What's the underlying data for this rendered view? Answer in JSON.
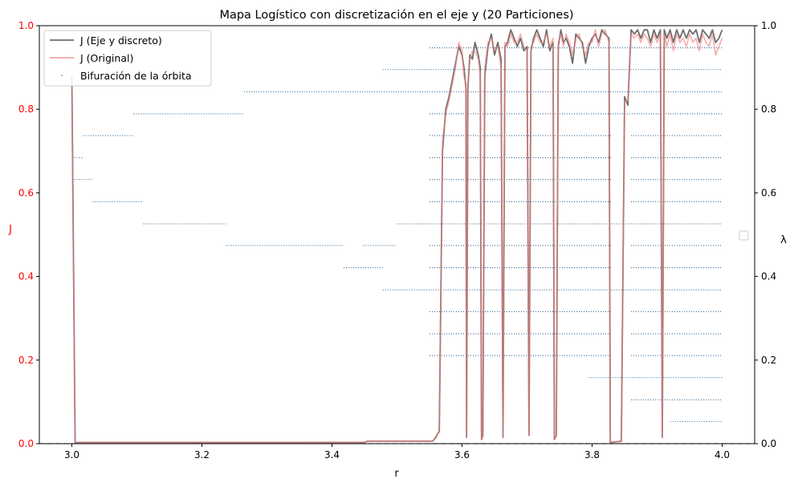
{
  "chart_data": {
    "type": "line",
    "title": "Mapa Logístico con discretización en el eje y (20 Particiones)",
    "xlabel": "r",
    "ylabel_left": "J",
    "ylabel_right": "λ",
    "xlim": [
      2.95,
      4.05
    ],
    "ylim_left": [
      0,
      1
    ],
    "ylim_right": [
      0,
      1
    ],
    "x_ticks": [
      3.0,
      3.2,
      3.4,
      3.6,
      3.8,
      4.0
    ],
    "x_tick_labels": [
      "3.0",
      "3.2",
      "3.4",
      "3.6",
      "3.8",
      "4.0"
    ],
    "y_left_ticks": [
      0.0,
      0.2,
      0.4,
      0.6,
      0.8,
      1.0
    ],
    "y_left_tick_labels": [
      "0.0",
      "0.2",
      "0.4",
      "0.6",
      "0.8",
      "1.0"
    ],
    "y_right_ticks": [
      0.0,
      0.2,
      0.4,
      0.6,
      0.8,
      1.0
    ],
    "y_right_tick_labels": [
      "0.0",
      "0.2",
      "0.4",
      "0.6",
      "0.8",
      "1.0"
    ],
    "grid": false,
    "legend_placement": "top-left",
    "colors": {
      "discrete": "#6e6e6e",
      "original": "#f08080",
      "bifurcation": "#1f5a8a",
      "left_axis_text": "#ff0000",
      "baseline": "#333333"
    },
    "series": [
      {
        "name": "J (Eje y discreto)",
        "style": "line",
        "points": [
          [
            3.0,
            0.88
          ],
          [
            3.005,
            0.003
          ],
          [
            3.45,
            0.003
          ],
          [
            3.455,
            0.006
          ],
          [
            3.555,
            0.006
          ],
          [
            3.56,
            0.016
          ],
          [
            3.565,
            0.03
          ],
          [
            3.57,
            0.7
          ],
          [
            3.575,
            0.8
          ],
          [
            3.58,
            0.83
          ],
          [
            3.59,
            0.91
          ],
          [
            3.595,
            0.95
          ],
          [
            3.6,
            0.93
          ],
          [
            3.603,
            0.9
          ],
          [
            3.606,
            0.85
          ],
          [
            3.607,
            0.015
          ],
          [
            3.609,
            0.85
          ],
          [
            3.612,
            0.93
          ],
          [
            3.616,
            0.92
          ],
          [
            3.62,
            0.96
          ],
          [
            3.625,
            0.93
          ],
          [
            3.628,
            0.9
          ],
          [
            3.63,
            0.01
          ],
          [
            3.632,
            0.02
          ],
          [
            3.635,
            0.88
          ],
          [
            3.64,
            0.95
          ],
          [
            3.645,
            0.98
          ],
          [
            3.65,
            0.93
          ],
          [
            3.655,
            0.96
          ],
          [
            3.66,
            0.92
          ],
          [
            3.663,
            0.015
          ],
          [
            3.666,
            0.95
          ],
          [
            3.67,
            0.96
          ],
          [
            3.675,
            0.99
          ],
          [
            3.68,
            0.97
          ],
          [
            3.685,
            0.95
          ],
          [
            3.69,
            0.97
          ],
          [
            3.695,
            0.94
          ],
          [
            3.7,
            0.95
          ],
          [
            3.703,
            0.02
          ],
          [
            3.706,
            0.94
          ],
          [
            3.71,
            0.97
          ],
          [
            3.715,
            0.99
          ],
          [
            3.72,
            0.97
          ],
          [
            3.725,
            0.95
          ],
          [
            3.73,
            0.99
          ],
          [
            3.735,
            0.94
          ],
          [
            3.74,
            0.96
          ],
          [
            3.742,
            0.01
          ],
          [
            3.745,
            0.02
          ],
          [
            3.748,
            0.95
          ],
          [
            3.752,
            0.99
          ],
          [
            3.756,
            0.96
          ],
          [
            3.76,
            0.97
          ],
          [
            3.765,
            0.95
          ],
          [
            3.77,
            0.91
          ],
          [
            3.775,
            0.98
          ],
          [
            3.78,
            0.97
          ],
          [
            3.785,
            0.96
          ],
          [
            3.79,
            0.91
          ],
          [
            3.795,
            0.95
          ],
          [
            3.8,
            0.97
          ],
          [
            3.805,
            0.98
          ],
          [
            3.81,
            0.96
          ],
          [
            3.815,
            0.99
          ],
          [
            3.82,
            0.98
          ],
          [
            3.826,
            0.97
          ],
          [
            3.828,
            0.003
          ],
          [
            3.83,
            0.003
          ],
          [
            3.845,
            0.006
          ],
          [
            3.85,
            0.83
          ],
          [
            3.855,
            0.81
          ],
          [
            3.86,
            0.99
          ],
          [
            3.865,
            0.98
          ],
          [
            3.87,
            0.99
          ],
          [
            3.875,
            0.97
          ],
          [
            3.88,
            0.99
          ],
          [
            3.885,
            0.99
          ],
          [
            3.89,
            0.96
          ],
          [
            3.895,
            0.99
          ],
          [
            3.9,
            0.97
          ],
          [
            3.905,
            0.99
          ],
          [
            3.908,
            0.015
          ],
          [
            3.911,
            0.99
          ],
          [
            3.915,
            0.97
          ],
          [
            3.92,
            0.99
          ],
          [
            3.925,
            0.96
          ],
          [
            3.93,
            0.99
          ],
          [
            3.935,
            0.97
          ],
          [
            3.94,
            0.99
          ],
          [
            3.945,
            0.97
          ],
          [
            3.95,
            0.99
          ],
          [
            3.955,
            0.98
          ],
          [
            3.96,
            0.99
          ],
          [
            3.965,
            0.96
          ],
          [
            3.97,
            0.99
          ],
          [
            3.975,
            0.98
          ],
          [
            3.98,
            0.97
          ],
          [
            3.985,
            0.99
          ],
          [
            3.99,
            0.96
          ],
          [
            3.995,
            0.97
          ],
          [
            4.0,
            0.99
          ]
        ]
      },
      {
        "name": "J (Original)",
        "style": "line",
        "points": [
          [
            3.0,
            0.88
          ],
          [
            3.005,
            0.003
          ],
          [
            3.45,
            0.003
          ],
          [
            3.455,
            0.006
          ],
          [
            3.555,
            0.006
          ],
          [
            3.56,
            0.018
          ],
          [
            3.565,
            0.028
          ],
          [
            3.57,
            0.72
          ],
          [
            3.575,
            0.79
          ],
          [
            3.58,
            0.82
          ],
          [
            3.59,
            0.9
          ],
          [
            3.595,
            0.96
          ],
          [
            3.6,
            0.94
          ],
          [
            3.603,
            0.88
          ],
          [
            3.606,
            0.86
          ],
          [
            3.607,
            0.015
          ],
          [
            3.609,
            0.86
          ],
          [
            3.612,
            0.92
          ],
          [
            3.616,
            0.94
          ],
          [
            3.62,
            0.94
          ],
          [
            3.625,
            0.92
          ],
          [
            3.628,
            0.88
          ],
          [
            3.63,
            0.01
          ],
          [
            3.632,
            0.02
          ],
          [
            3.635,
            0.9
          ],
          [
            3.64,
            0.96
          ],
          [
            3.645,
            0.97
          ],
          [
            3.65,
            0.94
          ],
          [
            3.655,
            0.95
          ],
          [
            3.66,
            0.9
          ],
          [
            3.663,
            0.015
          ],
          [
            3.666,
            0.96
          ],
          [
            3.67,
            0.95
          ],
          [
            3.675,
            0.98
          ],
          [
            3.68,
            0.96
          ],
          [
            3.685,
            0.96
          ],
          [
            3.69,
            0.98
          ],
          [
            3.695,
            0.95
          ],
          [
            3.7,
            0.94
          ],
          [
            3.703,
            0.02
          ],
          [
            3.706,
            0.95
          ],
          [
            3.71,
            0.96
          ],
          [
            3.715,
            0.98
          ],
          [
            3.72,
            0.96
          ],
          [
            3.725,
            0.96
          ],
          [
            3.73,
            0.98
          ],
          [
            3.735,
            0.95
          ],
          [
            3.74,
            0.97
          ],
          [
            3.742,
            0.01
          ],
          [
            3.745,
            0.02
          ],
          [
            3.748,
            0.96
          ],
          [
            3.752,
            0.98
          ],
          [
            3.756,
            0.95
          ],
          [
            3.76,
            0.98
          ],
          [
            3.765,
            0.96
          ],
          [
            3.77,
            0.93
          ],
          [
            3.775,
            0.97
          ],
          [
            3.78,
            0.98
          ],
          [
            3.785,
            0.95
          ],
          [
            3.79,
            0.93
          ],
          [
            3.795,
            0.96
          ],
          [
            3.8,
            0.96
          ],
          [
            3.805,
            0.99
          ],
          [
            3.81,
            0.95
          ],
          [
            3.815,
            0.98
          ],
          [
            3.82,
            0.99
          ],
          [
            3.826,
            0.96
          ],
          [
            3.828,
            0.003
          ],
          [
            3.83,
            0.003
          ],
          [
            3.845,
            0.006
          ],
          [
            3.85,
            0.82
          ],
          [
            3.855,
            0.82
          ],
          [
            3.86,
            0.98
          ],
          [
            3.865,
            0.97
          ],
          [
            3.87,
            0.98
          ],
          [
            3.875,
            0.96
          ],
          [
            3.88,
            0.98
          ],
          [
            3.885,
            0.97
          ],
          [
            3.89,
            0.95
          ],
          [
            3.895,
            0.98
          ],
          [
            3.9,
            0.96
          ],
          [
            3.905,
            0.98
          ],
          [
            3.908,
            0.015
          ],
          [
            3.911,
            0.98
          ],
          [
            3.915,
            0.95
          ],
          [
            3.92,
            0.98
          ],
          [
            3.925,
            0.94
          ],
          [
            3.93,
            0.98
          ],
          [
            3.935,
            0.96
          ],
          [
            3.94,
            0.97
          ],
          [
            3.945,
            0.95
          ],
          [
            3.95,
            0.98
          ],
          [
            3.955,
            0.96
          ],
          [
            3.96,
            0.97
          ],
          [
            3.965,
            0.94
          ],
          [
            3.97,
            0.98
          ],
          [
            3.975,
            0.96
          ],
          [
            3.98,
            0.95
          ],
          [
            3.985,
            0.98
          ],
          [
            3.99,
            0.93
          ],
          [
            3.995,
            0.95
          ],
          [
            4.0,
            0.97
          ]
        ]
      },
      {
        "name": "Bifuración de la órbita",
        "style": "dotted-segments",
        "segments": [
          {
            "y": 0.947,
            "x_from": 3.0,
            "x_to": 3.003
          },
          {
            "y": 0.895,
            "x_from": 3.0,
            "x_to": 3.003
          },
          {
            "y": 0.842,
            "x_from": 3.0,
            "x_to": 3.003
          },
          {
            "y": 0.789,
            "x_from": 3.0,
            "x_to": 3.003
          },
          {
            "y": 0.684,
            "x_from": 3.0,
            "x_to": 3.018
          },
          {
            "y": 0.632,
            "x_from": 3.0,
            "x_to": 3.032
          },
          {
            "y": 0.737,
            "x_from": 3.018,
            "x_to": 3.095
          },
          {
            "y": 0.579,
            "x_from": 3.032,
            "x_to": 3.11
          },
          {
            "y": 0.789,
            "x_from": 3.095,
            "x_to": 3.265
          },
          {
            "y": 0.526,
            "x_from": 3.11,
            "x_to": 3.237
          },
          {
            "y": 0.474,
            "x_from": 3.237,
            "x_to": 3.418
          },
          {
            "y": 0.842,
            "x_from": 3.265,
            "x_to": 4.0
          },
          {
            "y": 0.421,
            "x_from": 3.418,
            "x_to": 3.478
          },
          {
            "y": 0.474,
            "x_from": 3.448,
            "x_to": 3.5
          },
          {
            "y": 0.895,
            "x_from": 3.478,
            "x_to": 4.0
          },
          {
            "y": 0.368,
            "x_from": 3.478,
            "x_to": 4.0
          },
          {
            "y": 0.526,
            "x_from": 3.5,
            "x_to": 4.0
          },
          {
            "y": 0.947,
            "x_from": 3.55,
            "x_to": 4.0
          },
          {
            "y": 0.789,
            "x_from": 3.55,
            "x_to": 4.0
          },
          {
            "y": 0.737,
            "x_from": 3.55,
            "x_to": 3.83
          },
          {
            "y": 0.684,
            "x_from": 3.55,
            "x_to": 3.83
          },
          {
            "y": 0.632,
            "x_from": 3.55,
            "x_to": 3.83
          },
          {
            "y": 0.579,
            "x_from": 3.55,
            "x_to": 3.83
          },
          {
            "y": 0.474,
            "x_from": 3.55,
            "x_to": 3.83
          },
          {
            "y": 0.421,
            "x_from": 3.55,
            "x_to": 3.83
          },
          {
            "y": 0.316,
            "x_from": 3.55,
            "x_to": 3.83
          },
          {
            "y": 0.263,
            "x_from": 3.55,
            "x_to": 3.83
          },
          {
            "y": 0.211,
            "x_from": 3.55,
            "x_to": 3.83
          },
          {
            "y": 0.737,
            "x_from": 3.86,
            "x_to": 4.0
          },
          {
            "y": 0.684,
            "x_from": 3.86,
            "x_to": 4.0
          },
          {
            "y": 0.632,
            "x_from": 3.86,
            "x_to": 4.0
          },
          {
            "y": 0.579,
            "x_from": 3.86,
            "x_to": 4.0
          },
          {
            "y": 0.474,
            "x_from": 3.86,
            "x_to": 4.0
          },
          {
            "y": 0.421,
            "x_from": 3.86,
            "x_to": 4.0
          },
          {
            "y": 0.316,
            "x_from": 3.86,
            "x_to": 4.0
          },
          {
            "y": 0.263,
            "x_from": 3.86,
            "x_to": 4.0
          },
          {
            "y": 0.211,
            "x_from": 3.86,
            "x_to": 4.0
          },
          {
            "y": 0.158,
            "x_from": 3.795,
            "x_to": 4.0
          },
          {
            "y": 0.105,
            "x_from": 3.86,
            "x_to": 4.0
          },
          {
            "y": 0.053,
            "x_from": 3.92,
            "x_to": 4.0
          }
        ]
      }
    ],
    "baseline": {
      "y": 0,
      "style": "dashed"
    }
  }
}
